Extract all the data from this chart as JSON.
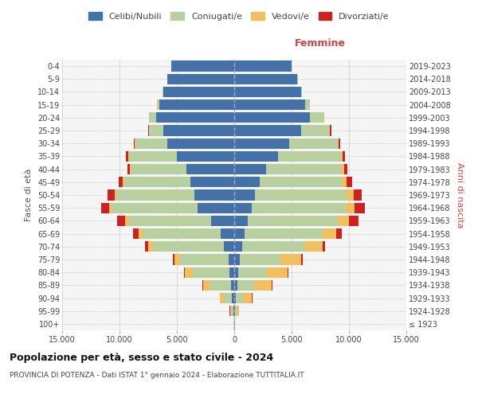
{
  "age_groups": [
    "100+",
    "95-99",
    "90-94",
    "85-89",
    "80-84",
    "75-79",
    "70-74",
    "65-69",
    "60-64",
    "55-59",
    "50-54",
    "45-49",
    "40-44",
    "35-39",
    "30-34",
    "25-29",
    "20-24",
    "15-19",
    "10-14",
    "5-9",
    "0-4"
  ],
  "birth_years": [
    "≤ 1923",
    "1924-1928",
    "1929-1933",
    "1934-1938",
    "1939-1943",
    "1944-1948",
    "1949-1953",
    "1954-1958",
    "1959-1963",
    "1964-1968",
    "1969-1973",
    "1974-1978",
    "1979-1983",
    "1984-1988",
    "1989-1993",
    "1994-1998",
    "1999-2003",
    "2004-2008",
    "2009-2013",
    "2014-2018",
    "2019-2023"
  ],
  "males": {
    "celibi": [
      30,
      80,
      180,
      300,
      400,
      500,
      900,
      1200,
      2000,
      3200,
      3500,
      3800,
      4200,
      5000,
      5800,
      6200,
      6800,
      6500,
      6200,
      5800,
      5500
    ],
    "coniugati": [
      50,
      200,
      700,
      1800,
      3200,
      4200,
      6200,
      6800,
      7200,
      7500,
      6800,
      5800,
      4800,
      4200,
      2800,
      1200,
      600,
      200,
      50,
      20,
      10
    ],
    "vedovi": [
      10,
      100,
      350,
      600,
      700,
      500,
      400,
      350,
      300,
      200,
      150,
      100,
      80,
      60,
      50,
      30,
      20,
      10,
      5,
      5,
      5
    ],
    "divorziati": [
      5,
      20,
      40,
      60,
      80,
      120,
      250,
      450,
      700,
      700,
      600,
      350,
      200,
      150,
      100,
      50,
      20,
      10,
      5,
      5,
      5
    ]
  },
  "females": {
    "nubili": [
      20,
      60,
      150,
      250,
      350,
      500,
      700,
      900,
      1200,
      1500,
      1800,
      2200,
      2800,
      3800,
      4800,
      5800,
      6600,
      6200,
      5800,
      5500,
      5000
    ],
    "coniugate": [
      40,
      150,
      600,
      1500,
      2500,
      3500,
      5500,
      6800,
      7800,
      8200,
      8000,
      7200,
      6500,
      5500,
      4200,
      2500,
      1200,
      400,
      100,
      30,
      10
    ],
    "vedove": [
      20,
      200,
      800,
      1500,
      1800,
      1800,
      1500,
      1200,
      1000,
      800,
      600,
      400,
      250,
      150,
      100,
      60,
      30,
      15,
      8,
      5,
      5
    ],
    "divorziate": [
      5,
      20,
      40,
      80,
      100,
      150,
      250,
      450,
      800,
      900,
      700,
      500,
      300,
      200,
      150,
      80,
      30,
      10,
      5,
      5,
      5
    ]
  },
  "colors": {
    "celibi": "#4472a8",
    "coniugati": "#b8cfa0",
    "vedovi": "#f0c060",
    "divorziati": "#cc2222"
  },
  "title": "Popolazione per età, sesso e stato civile - 2024",
  "subtitle": "PROVINCIA DI POTENZA - Dati ISTAT 1° gennaio 2024 - Elaborazione TUTTITALIA.IT",
  "xlabel_right": "Femmine",
  "ylabel_left": "Fasce di età",
  "ylabel_right": "Anni di nascita",
  "xlim": 15000,
  "legend_labels": [
    "Celibi/Nubili",
    "Coniugati/e",
    "Vedovi/e",
    "Divorziati/e"
  ],
  "bg_color": "#f5f5f5"
}
